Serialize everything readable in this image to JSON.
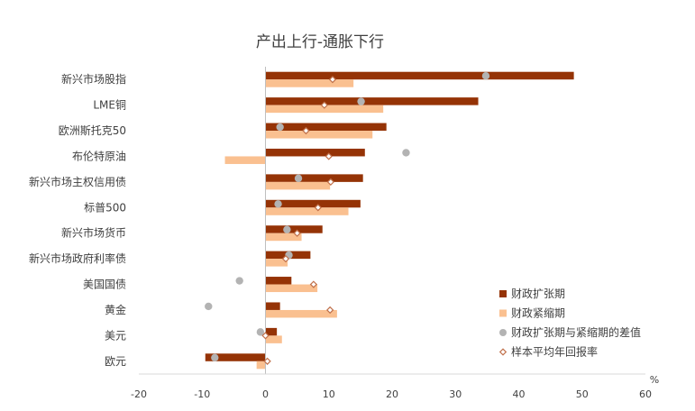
{
  "chart_data": {
    "type": "bar",
    "orientation": "horizontal",
    "title": "产出上行-通胀下行",
    "xlabel": "%",
    "ylabel": "",
    "xlim": [
      -20,
      60
    ],
    "xticks": [
      -20,
      -10,
      0,
      10,
      20,
      30,
      40,
      50,
      60
    ],
    "grid": false,
    "legend_position": "bottom-right",
    "categories": [
      "新兴市场股指",
      "LME铜",
      "欧洲斯托克50",
      "布伦特原油",
      "新兴市场主权信用债",
      "标普500",
      "新兴市场货币",
      "新兴市场政府利率债",
      "美国国债",
      "黄金",
      "美元",
      "欧元"
    ],
    "series": [
      {
        "name": "财政扩张期",
        "kind": "bar",
        "color": "#953306",
        "values": [
          48.7,
          33.6,
          19.1,
          15.7,
          15.4,
          15.0,
          9.0,
          7.1,
          4.1,
          2.3,
          1.8,
          -9.5
        ]
      },
      {
        "name": "财政紧缩期",
        "kind": "bar",
        "color": "#FAC090",
        "values": [
          13.9,
          18.6,
          16.9,
          -6.4,
          10.2,
          13.1,
          5.7,
          3.5,
          8.2,
          11.3,
          2.6,
          -1.4
        ]
      },
      {
        "name": "财政扩张期与紧缩期的差值",
        "kind": "point",
        "color": "#B3B3B3",
        "values": [
          34.8,
          15.1,
          2.3,
          22.2,
          5.2,
          2.0,
          3.4,
          3.7,
          -4.1,
          -9.0,
          -0.8,
          -8.0
        ]
      },
      {
        "name": "样本平均年回报率",
        "kind": "marker",
        "color": "#C0704A",
        "values": [
          10.6,
          9.3,
          6.4,
          10.0,
          10.3,
          8.3,
          5.0,
          3.2,
          7.6,
          10.2,
          0.0,
          0.3
        ]
      }
    ]
  }
}
